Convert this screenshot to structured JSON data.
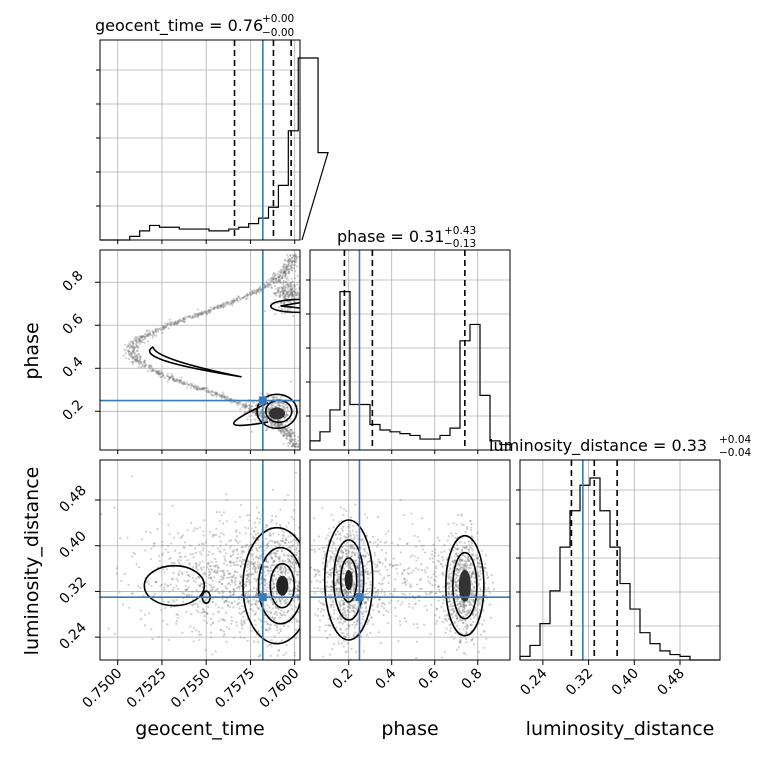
{
  "chart_data": {
    "type": "corner",
    "parameters": [
      {
        "key": "geocent_time",
        "label": "geocent_time",
        "range": [
          0.749,
          0.7603
        ],
        "ticks": [
          0.75,
          0.7525,
          0.755,
          0.7575,
          0.76
        ],
        "tick_labels": [
          "0.7500",
          "0.7525",
          "0.7550",
          "0.7575",
          "0.7600"
        ],
        "title": "geocent_time = 0.76",
        "title_sup": "+0.00",
        "title_sub": "−0.00",
        "truth": 0.7582,
        "quantiles": [
          0.7566,
          0.7588,
          0.7598
        ]
      },
      {
        "key": "phase",
        "label": "phase",
        "range": [
          0.02,
          0.95
        ],
        "ticks": [
          0.2,
          0.4,
          0.6,
          0.8
        ],
        "tick_labels": [
          "0.2",
          "0.4",
          "0.6",
          "0.8"
        ],
        "title": "phase = 0.31",
        "title_sup": "+0.43",
        "title_sub": "−0.13",
        "truth": 0.25,
        "quantiles": [
          0.18,
          0.31,
          0.74
        ]
      },
      {
        "key": "luminosity_distance",
        "label": "luminosity_distance",
        "range": [
          0.2,
          0.55
        ],
        "ticks": [
          0.24,
          0.32,
          0.4,
          0.48
        ],
        "tick_labels": [
          "0.24",
          "0.32",
          "0.40",
          "0.48"
        ],
        "title": "luminosity_distance = 0.33",
        "title_sup": "+0.04",
        "title_sub": "−0.04",
        "truth": 0.31,
        "quantiles": [
          0.29,
          0.33,
          0.37
        ]
      }
    ],
    "histograms": {
      "geocent_time": {
        "edges_start": 0.749,
        "bin_width": 0.00056,
        "counts": [
          0,
          0,
          0,
          0.02,
          0.05,
          0.08,
          0.07,
          0.07,
          0.06,
          0.06,
          0.06,
          0.05,
          0.05,
          0.06,
          0.07,
          0.09,
          0.12,
          0.18,
          0.3,
          0.6,
          1.0,
          1.0,
          0.48
        ]
      },
      "phase": {
        "edges_start": 0.02,
        "bin_width": 0.0465,
        "counts": [
          0.05,
          0.1,
          0.22,
          0.87,
          0.25,
          0.25,
          0.14,
          0.11,
          0.1,
          0.09,
          0.08,
          0.06,
          0.06,
          0.08,
          0.12,
          0.6,
          0.69,
          0.3,
          0.05,
          0.03
        ]
      },
      "luminosity_distance": {
        "edges_start": 0.2,
        "bin_width": 0.0175,
        "counts": [
          0.02,
          0.08,
          0.2,
          0.38,
          0.62,
          0.82,
          0.96,
          1.0,
          0.82,
          0.62,
          0.42,
          0.28,
          0.15,
          0.09,
          0.05,
          0.03,
          0.02,
          0,
          0,
          0
        ]
      }
    },
    "grid": true
  }
}
